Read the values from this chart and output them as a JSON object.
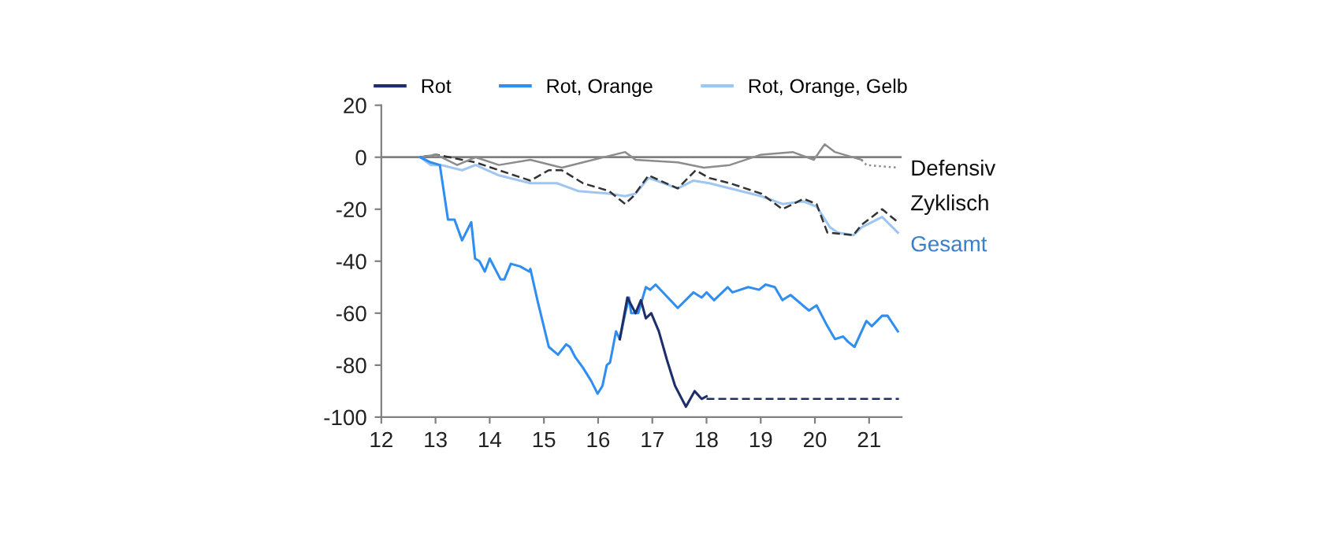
{
  "chart_data": {
    "type": "line",
    "xlim": [
      12,
      21.6
    ],
    "ylim": [
      -100,
      20
    ],
    "xticks": [
      12,
      13,
      14,
      15,
      16,
      17,
      18,
      19,
      20,
      21
    ],
    "yticks": [
      -100,
      -80,
      -60,
      -40,
      -20,
      0,
      20
    ],
    "grid": false,
    "legend": "top",
    "marker": "none",
    "ref_lines": [
      {
        "axis": "y",
        "value": 0,
        "color": "#808080"
      }
    ],
    "annotations": [
      "Defensiv",
      "Zyklisch",
      "Gesamt"
    ],
    "series": [
      {
        "name": "Rot, Orange, Gelb",
        "color": "#9fc6f0",
        "x": [
          12.72,
          12.91,
          13.1,
          13.49,
          13.74,
          14.17,
          14.75,
          15.24,
          15.63,
          16.2,
          16.5,
          16.69,
          16.93,
          17.08,
          17.47,
          17.76,
          18.05,
          18.43,
          19.01,
          19.4,
          19.79,
          20.03,
          20.28,
          20.42,
          20.71,
          20.86,
          21.24,
          21.53
        ],
        "values": [
          0,
          -3,
          -3,
          -5,
          -3,
          -7,
          -10,
          -10,
          -13,
          -14,
          -15,
          -14,
          -8,
          -9,
          -12,
          -9,
          -10,
          -12,
          -15,
          -18,
          -17,
          -19,
          -27,
          -29,
          -30,
          -27,
          -23,
          -29
        ]
      },
      {
        "color": "#333333",
        "line_style": "dashed",
        "x": [
          12.72,
          13.01,
          13.74,
          14.17,
          14.75,
          15.09,
          15.33,
          15.72,
          16.2,
          16.5,
          16.65,
          16.93,
          17.47,
          17.8,
          18.05,
          18.43,
          19.01,
          19.4,
          19.79,
          20.03,
          20.23,
          20.71,
          20.86,
          21.24,
          21.53
        ],
        "values": [
          0,
          1,
          -2,
          -5,
          -9,
          -5,
          -5,
          -10,
          -13,
          -18,
          -15,
          -7,
          -12,
          -5,
          -8,
          -10,
          -14,
          -20,
          -16,
          -18,
          -29,
          -30,
          -26,
          -20,
          -25
        ]
      },
      {
        "color": "#8c8c8c",
        "x": [
          12.72,
          13.01,
          13.4,
          13.74,
          14.17,
          14.75,
          15.33,
          15.91,
          16.5,
          16.69,
          17.47,
          17.95,
          18.43,
          19.01,
          19.59,
          19.98,
          20.18,
          20.37,
          20.86
        ],
        "values": [
          0,
          1,
          -3,
          0,
          -3,
          -1,
          -4,
          -1,
          2,
          -1,
          -2,
          -4,
          -3,
          1,
          2,
          -1,
          5,
          2,
          -1
        ]
      },
      {
        "color": "#8c8c8c",
        "line_style": "dotted",
        "x": [
          20.86,
          20.95,
          21.53
        ],
        "values": [
          -1,
          -3,
          -4
        ]
      },
      {
        "name": "Rot, Orange",
        "color": "#2f8ef0",
        "x": [
          12.72,
          12.91,
          13.08,
          13.23,
          13.35,
          13.49,
          13.66,
          13.73,
          13.81,
          13.91,
          14.0,
          14.2,
          14.27,
          14.39,
          14.56,
          14.73,
          14.75,
          14.88,
          15.09,
          15.26,
          15.41,
          15.48,
          15.58,
          15.72,
          15.87,
          15.99,
          16.08,
          16.16,
          16.22,
          16.33,
          16.4,
          16.5,
          16.57,
          16.61,
          16.74,
          16.88,
          16.96,
          17.06,
          17.47,
          17.76,
          17.91,
          18.0,
          18.14,
          18.39,
          18.48,
          18.77,
          18.97,
          19.09,
          19.26,
          19.4,
          19.55,
          19.89,
          20.03,
          20.23,
          20.37,
          20.52,
          20.61,
          20.73,
          20.95,
          21.05,
          21.24,
          21.34,
          21.53
        ],
        "values": [
          0,
          -2,
          -3,
          -24,
          -24,
          -32,
          -25,
          -39,
          -40,
          -44,
          -39,
          -47,
          -47,
          -41,
          -42,
          -44,
          -43,
          -55,
          -73,
          -76,
          -72,
          -73,
          -77,
          -81,
          -86,
          -91,
          -88,
          -80,
          -79,
          -67,
          -70,
          -60,
          -54,
          -60,
          -60,
          -50,
          -51,
          -49,
          -58,
          -52,
          -54,
          -52,
          -55,
          -50,
          -52,
          -50,
          -51,
          -49,
          -50,
          -55,
          -53,
          -59,
          -57,
          -65,
          -70,
          -69,
          -71,
          -73,
          -63,
          -65,
          -61,
          -61,
          -67
        ]
      },
      {
        "name": "Rot",
        "color": "#1f2d6b",
        "x": [
          16.4,
          16.54,
          16.69,
          16.79,
          16.88,
          16.98,
          17.12,
          17.27,
          17.42,
          17.62,
          17.78,
          17.91,
          18.0
        ],
        "values": [
          -70,
          -54,
          -60,
          -55,
          -62,
          -60,
          -67,
          -78,
          -88,
          -96,
          -90,
          -93,
          -92
        ]
      },
      {
        "color": "#1f2d6b",
        "line_style": "dashed",
        "x": [
          18.0,
          21.55
        ],
        "values": [
          -93,
          -93
        ]
      }
    ]
  }
}
